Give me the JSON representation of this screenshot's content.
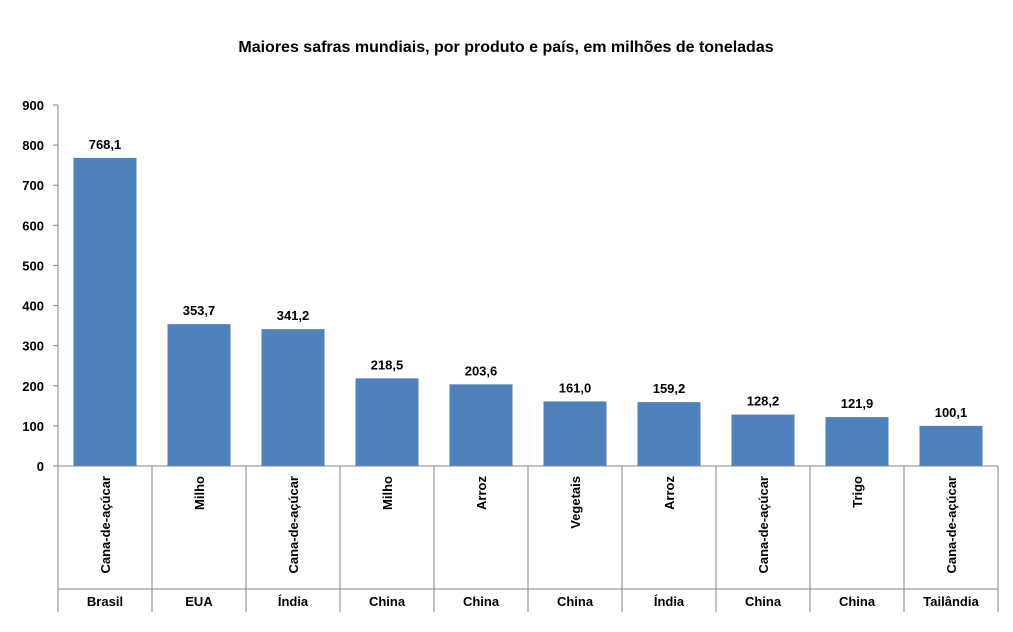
{
  "chart_data": {
    "type": "bar",
    "title": "Maiores safras mundiais, por produto e país, em milhões de toneladas",
    "categories": [
      {
        "product": "Cana-de-açúcar",
        "country": "Brasil"
      },
      {
        "product": "Milho",
        "country": "EUA"
      },
      {
        "product": "Cana-de-açúcar",
        "country": "Índia"
      },
      {
        "product": "Milho",
        "country": "China"
      },
      {
        "product": "Arroz",
        "country": "China"
      },
      {
        "product": "Vegetais",
        "country": "China"
      },
      {
        "product": "Arroz",
        "country": "Índia"
      },
      {
        "product": "Cana-de-açúcar",
        "country": "China"
      },
      {
        "product": "Trigo",
        "country": "China"
      },
      {
        "product": "Cana-de-açúcar",
        "country": "Tailândia"
      }
    ],
    "values": [
      768.1,
      353.7,
      341.2,
      218.5,
      203.6,
      161.0,
      159.2,
      128.2,
      121.9,
      100.1
    ],
    "data_labels": [
      "768,1",
      "353,7",
      "341,2",
      "218,5",
      "203,6",
      "161,0",
      "159,2",
      "128,2",
      "121,9",
      "100,1"
    ],
    "y_ticks": [
      "0",
      "100",
      "200",
      "300",
      "400",
      "500",
      "600",
      "700",
      "800",
      "900"
    ],
    "ylim": [
      0,
      900
    ],
    "bar_color": "#4F81BD",
    "grid": false,
    "legend": "none"
  }
}
